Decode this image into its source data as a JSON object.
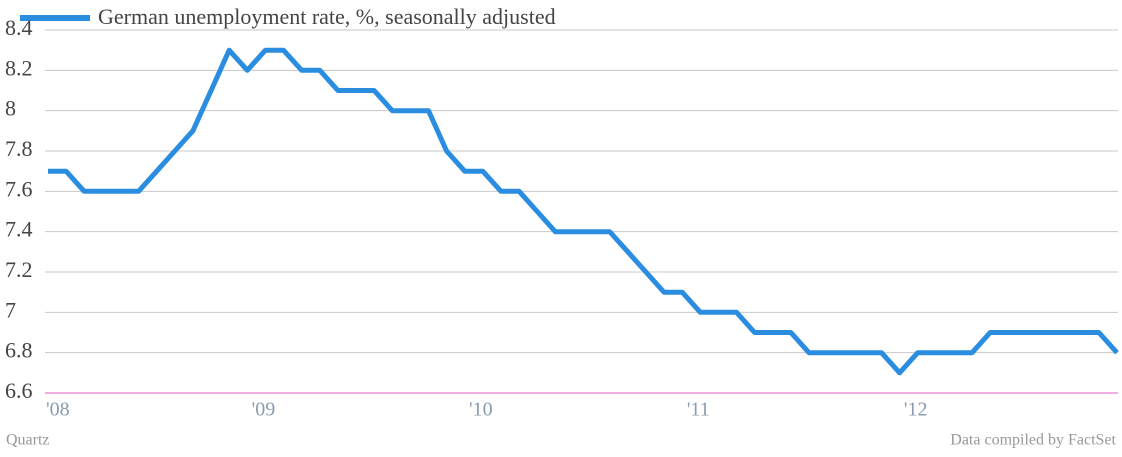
{
  "chart_data": {
    "type": "line",
    "categories": [
      "'08",
      null,
      null,
      null,
      null,
      null,
      null,
      null,
      null,
      null,
      null,
      null,
      "'09",
      null,
      null,
      null,
      null,
      null,
      null,
      null,
      null,
      null,
      null,
      null,
      "'10",
      null,
      null,
      null,
      null,
      null,
      null,
      null,
      null,
      null,
      null,
      null,
      "'11",
      null,
      null,
      null,
      null,
      null,
      null,
      null,
      null,
      null,
      null,
      null,
      "'12",
      null,
      null,
      null,
      null,
      null,
      null,
      null,
      null,
      null,
      null,
      null
    ],
    "series": [
      {
        "name": "German unemployment rate, %, seasonally adjusted",
        "color": "#2a8de0",
        "values": [
          7.7,
          7.7,
          7.6,
          7.6,
          7.6,
          7.6,
          7.7,
          7.8,
          7.9,
          8.1,
          8.3,
          8.2,
          8.3,
          8.3,
          8.2,
          8.2,
          8.1,
          8.1,
          8.1,
          8.0,
          8.0,
          8.0,
          7.8,
          7.7,
          7.7,
          7.6,
          7.6,
          7.5,
          7.4,
          7.4,
          7.4,
          7.4,
          7.3,
          7.2,
          7.1,
          7.1,
          7.0,
          7.0,
          7.0,
          6.9,
          6.9,
          6.9,
          6.8,
          6.8,
          6.8,
          6.8,
          6.8,
          6.7,
          6.8,
          6.8,
          6.8,
          6.8,
          6.9,
          6.9,
          6.9,
          6.9,
          6.9,
          6.9,
          6.9,
          6.8
        ]
      }
    ],
    "ylim": [
      6.6,
      8.4
    ],
    "yticks": [
      6.6,
      6.8,
      7,
      7.2,
      7.4,
      7.6,
      7.8,
      8,
      8.2,
      8.4
    ],
    "grid": true,
    "credit": "Quartz",
    "source": "Data compiled by FactSet"
  }
}
